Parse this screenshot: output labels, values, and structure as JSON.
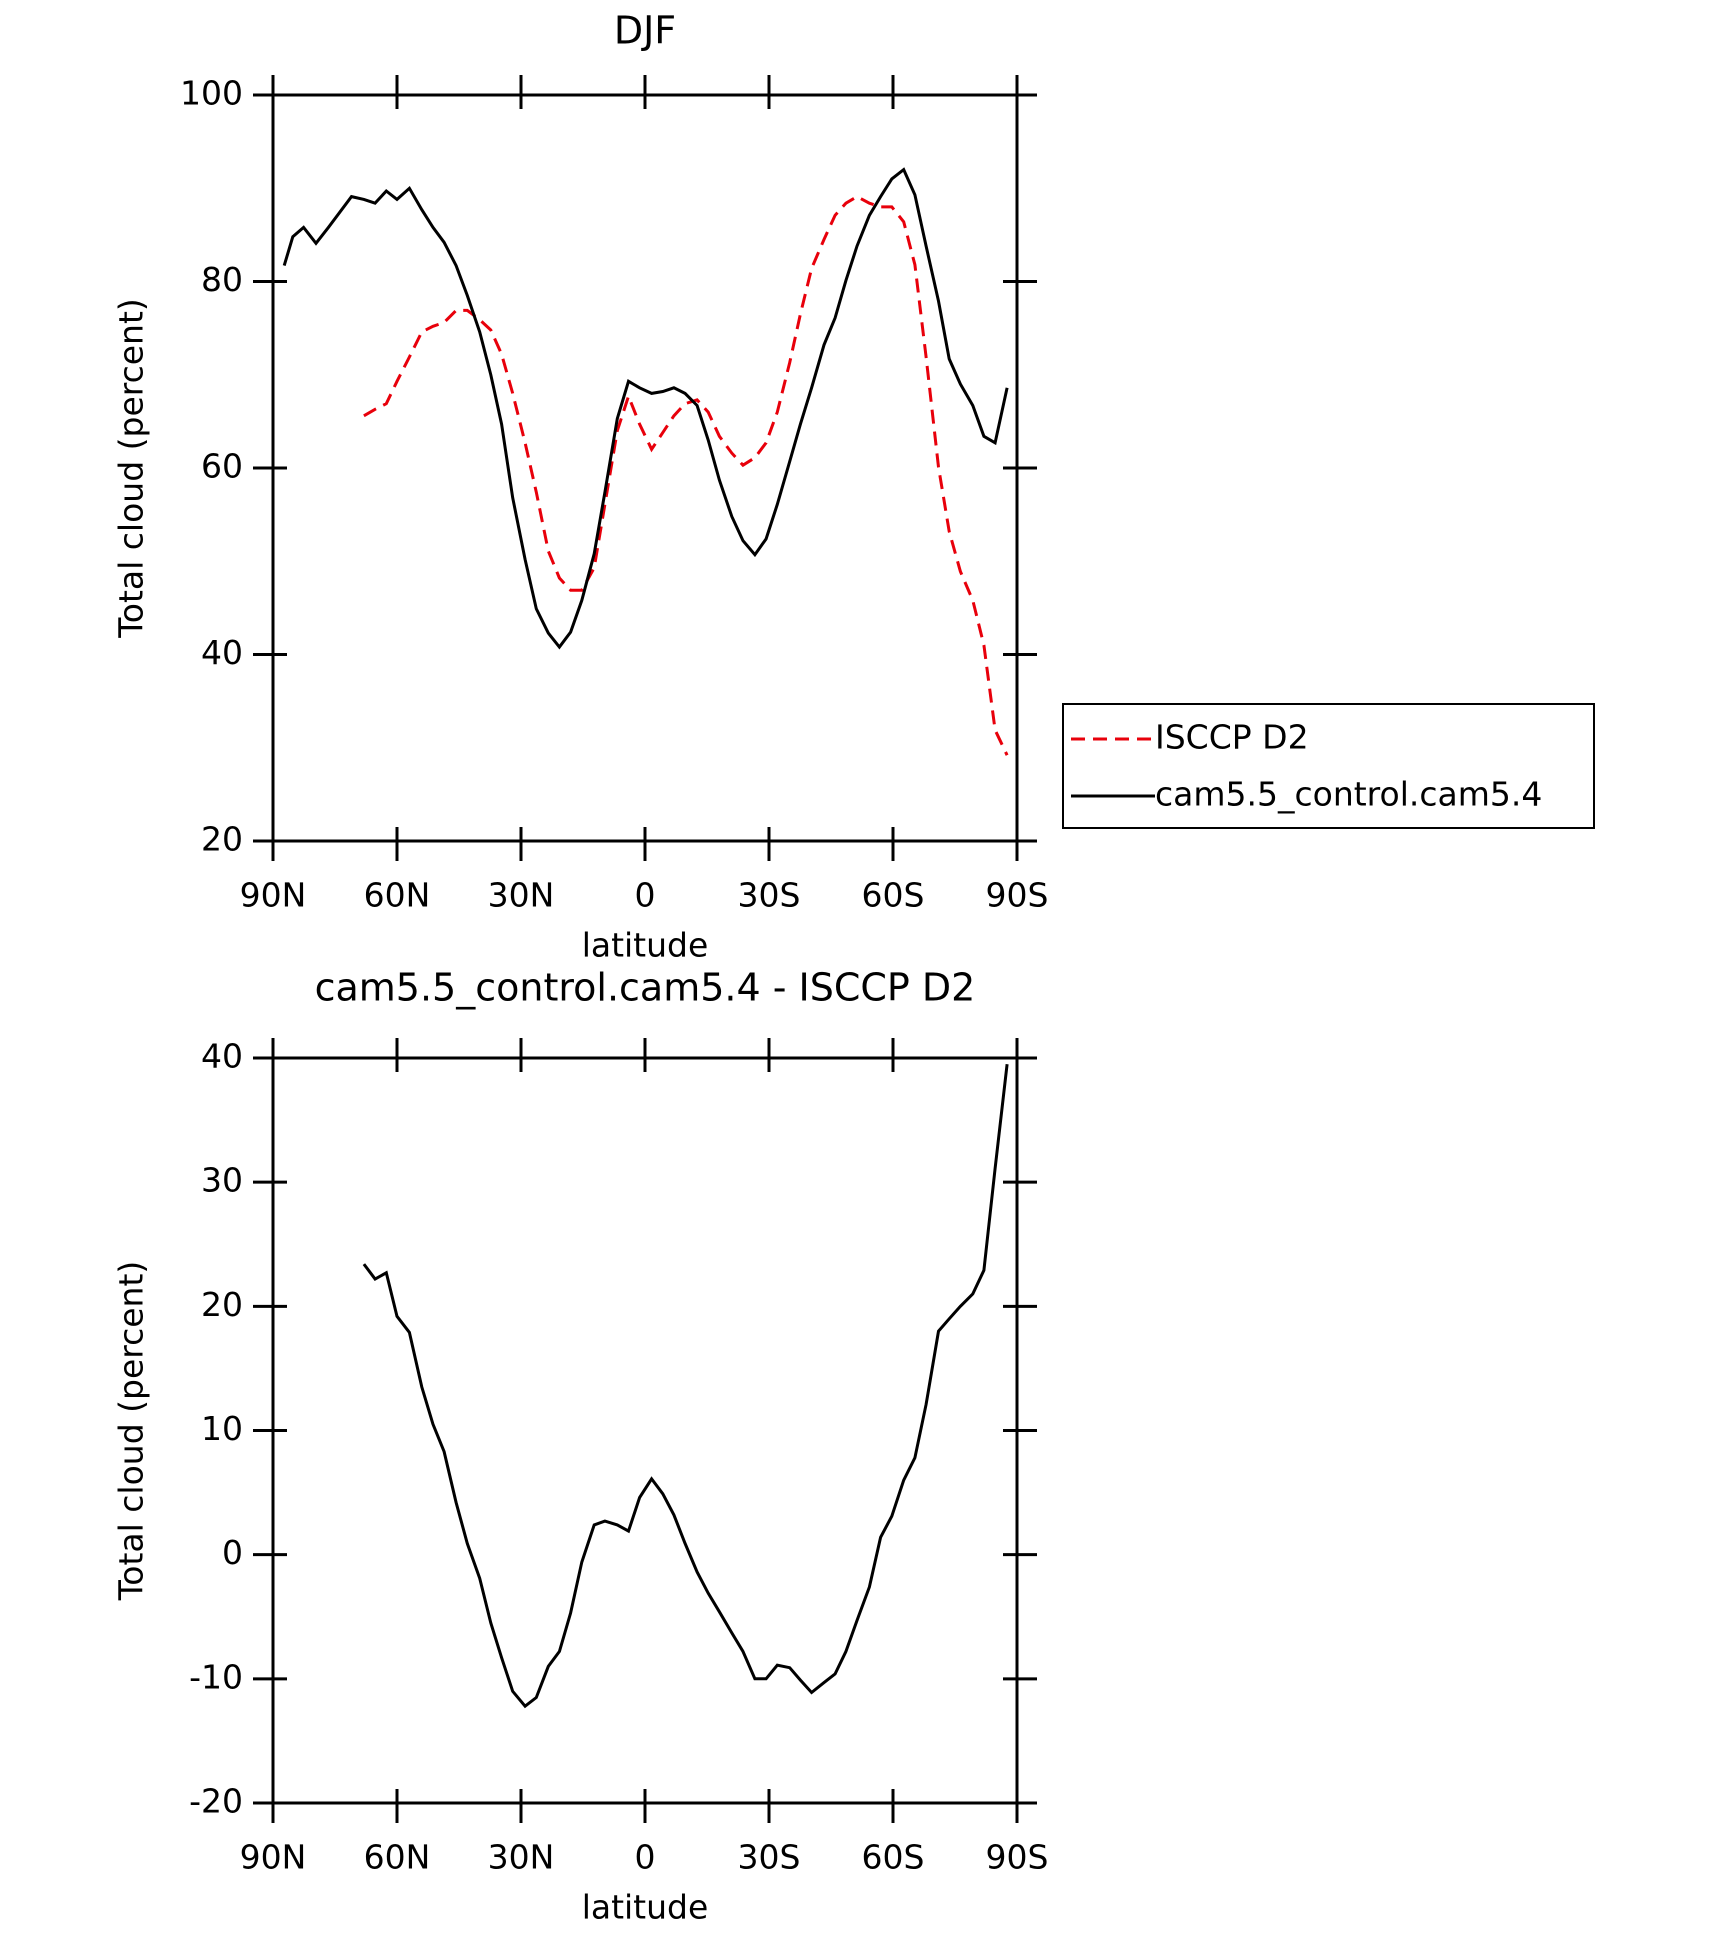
{
  "chart_data": [
    {
      "type": "line",
      "title": "DJF",
      "x_label": "latitude",
      "y_label": "Total cloud (percent)",
      "x": [
        87.3,
        85.2,
        82.6,
        79.6,
        76.6,
        71,
        68,
        65.3,
        62.6,
        60,
        57,
        54,
        51.3,
        48.6,
        45.7,
        43,
        40,
        37.3,
        34.7,
        32,
        29,
        26.3,
        23.4,
        20.7,
        18,
        15.3,
        12.3,
        9.7,
        6.7,
        4,
        1.3,
        -1.6,
        -4.3,
        -7,
        -9.7,
        -12.6,
        -15.3,
        -18,
        -21,
        -23.7,
        -26.6,
        -29.3,
        -32,
        -35,
        -37.6,
        -40.3,
        -43.3,
        -46,
        -48.6,
        -51.3,
        -54.3,
        -57,
        -59.7,
        -62.6,
        -65.3,
        -68,
        -71,
        -73.6,
        -76.3,
        -79.3,
        -82,
        -84.7,
        -87.6
      ],
      "series": [
        {
          "name": "ISCCP D2",
          "color": "#e8000b",
          "line_style": "dashed",
          "values": [
            null,
            null,
            null,
            null,
            null,
            null,
            65.6,
            66.3,
            66.9,
            69.3,
            71.9,
            74.6,
            75.2,
            75.6,
            76.9,
            76.9,
            75.9,
            74.8,
            72.2,
            68.0,
            62.7,
            57.4,
            51.1,
            48.2,
            46.9,
            46.9,
            49.3,
            56.1,
            64.0,
            67.7,
            64.7,
            62.0,
            63.8,
            65.6,
            66.9,
            67.3,
            66.0,
            63.4,
            61.6,
            60.3,
            61.1,
            62.7,
            66.0,
            71.3,
            76.5,
            81.4,
            84.5,
            87.1,
            88.4,
            89.1,
            88.4,
            88.0,
            88.0,
            86.4,
            81.8,
            71.9,
            60.1,
            53.2,
            48.9,
            45.8,
            41.0,
            31.9,
            29.2
          ]
        },
        {
          "name": "cam5.5_control.cam5.4",
          "color": "#000000",
          "line_style": "solid",
          "values": [
            81.7,
            84.8,
            85.8,
            84.1,
            85.8,
            89.1,
            88.8,
            88.4,
            89.7,
            88.8,
            90.0,
            87.7,
            85.8,
            84.2,
            81.7,
            78.5,
            74.6,
            70.0,
            64.7,
            56.8,
            50.2,
            44.9,
            42.3,
            40.8,
            42.4,
            45.8,
            50.8,
            57.4,
            65.3,
            69.3,
            68.6,
            68.0,
            68.2,
            68.6,
            68.0,
            66.7,
            63.0,
            58.7,
            54.8,
            52.2,
            50.7,
            52.4,
            56.1,
            60.7,
            64.7,
            68.6,
            73.2,
            76.1,
            80.1,
            83.8,
            87.1,
            89.1,
            91.0,
            92.0,
            89.3,
            83.8,
            77.9,
            71.7,
            69.0,
            66.7,
            63.4,
            62.7,
            68.6
          ]
        }
      ],
      "xlim": [
        90,
        -90
      ],
      "xticks": [
        {
          "value": 90,
          "label": "90N"
        },
        {
          "value": 60,
          "label": "60N"
        },
        {
          "value": 30,
          "label": "30N"
        },
        0,
        {
          "value": -30,
          "label": "30S"
        },
        {
          "value": -60,
          "label": "60S"
        },
        {
          "value": -90,
          "label": "90S"
        }
      ],
      "ylim": [
        20,
        100
      ],
      "yticks": [
        20,
        40,
        60,
        80,
        100
      ],
      "legend": "outside-right"
    },
    {
      "type": "line",
      "title": "cam5.5_control.cam5.4 - ISCCP D2",
      "x_label": "latitude",
      "y_label": "Total cloud (percent)",
      "x": [
        68,
        65.3,
        62.6,
        60,
        57,
        54,
        51.3,
        48.6,
        45.7,
        43,
        40,
        37.3,
        34.7,
        32,
        29,
        26.3,
        23.4,
        20.7,
        18,
        15.3,
        12.3,
        9.7,
        6.7,
        4,
        1.3,
        -1.6,
        -4.3,
        -7,
        -9.7,
        -12.6,
        -15.3,
        -18,
        -21,
        -23.7,
        -26.6,
        -29.3,
        -32,
        -35,
        -37.6,
        -40.3,
        -43.3,
        -46,
        -48.6,
        -51.3,
        -54.3,
        -57,
        -59.7,
        -62.6,
        -65.3,
        -68,
        -71,
        -73.6,
        -76.3,
        -79.3,
        -82,
        -84.7,
        -87.6
      ],
      "series": [
        {
          "color": "#000000",
          "line_style": "solid",
          "values": [
            23.4,
            22.2,
            22.7,
            19.2,
            17.9,
            13.5,
            10.5,
            8.3,
            4.2,
            0.9,
            -1.9,
            -5.5,
            -8.3,
            -11.0,
            -12.2,
            -11.5,
            -9.0,
            -7.8,
            -4.7,
            -0.6,
            2.4,
            2.7,
            2.4,
            1.9,
            4.6,
            6.1,
            4.9,
            3.2,
            0.9,
            -1.4,
            -3.1,
            -4.6,
            -6.3,
            -7.8,
            -10.0,
            -10.0,
            -8.9,
            -9.1,
            -10.1,
            -11.1,
            -10.3,
            -9.6,
            -7.8,
            -5.3,
            -2.6,
            1.4,
            3.1,
            6.0,
            7.8,
            12.1,
            18.0,
            19.0,
            20.0,
            21.0,
            22.9,
            31.1,
            39.5
          ]
        }
      ],
      "xlim": [
        90,
        -90
      ],
      "xticks": [
        {
          "value": 90,
          "label": "90N"
        },
        {
          "value": 60,
          "label": "60N"
        },
        {
          "value": 30,
          "label": "30N"
        },
        0,
        {
          "value": -30,
          "label": "30S"
        },
        {
          "value": -60,
          "label": "60S"
        },
        {
          "value": -90,
          "label": "90S"
        }
      ],
      "ylim": [
        -20,
        40
      ],
      "yticks": [
        -20,
        -10,
        0,
        10,
        20,
        30,
        40
      ]
    }
  ]
}
